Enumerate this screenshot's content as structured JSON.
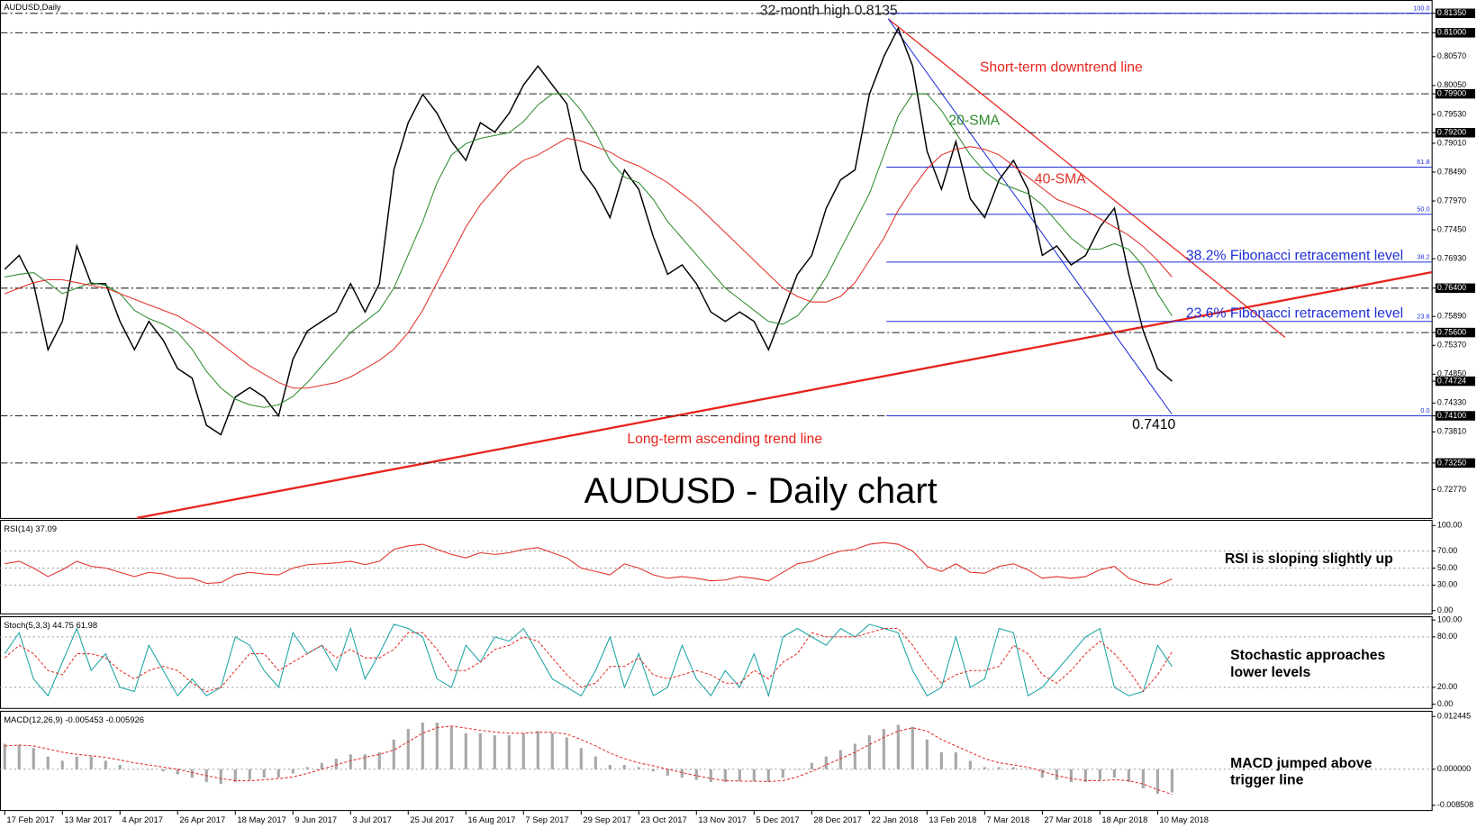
{
  "chart_data": [
    {
      "type": "line",
      "title": "AUDUSD - Daily chart",
      "categories": [
        "17 Feb 2017",
        null,
        null,
        null,
        "13 Mar 2017",
        null,
        null,
        null,
        "4 Apr 2017",
        null,
        null,
        null,
        "26 Apr 2017",
        null,
        null,
        null,
        "18 May 2017",
        null,
        null,
        null,
        "9 Jun 2017",
        null,
        null,
        null,
        "3 Jul 2017",
        null,
        null,
        null,
        "25 Jul 2017",
        null,
        null,
        null,
        "16 Aug 2017",
        null,
        null,
        null,
        "7 Sep 2017",
        null,
        null,
        null,
        "29 Sep 2017",
        null,
        null,
        null,
        "23 Oct 2017",
        null,
        null,
        null,
        "13 Nov 2017",
        null,
        null,
        null,
        "5 Dec 2017",
        null,
        null,
        null,
        "28 Dec 2017",
        null,
        null,
        null,
        "22 Jan 2018",
        null,
        null,
        null,
        "13 Feb 2018",
        null,
        null,
        null,
        "7 Mar 2018",
        null,
        null,
        null,
        "27 Mar 2018",
        null,
        null,
        null,
        "18 Apr 2018",
        null,
        null,
        null,
        "10 May 2018",
        null
      ],
      "series": [
        {
          "name": "AUDUSD,Daily",
          "color": "#000000",
          "values": [
            0.7674,
            0.7699,
            0.7648,
            0.7529,
            0.758,
            0.7716,
            0.7648,
            0.7648,
            0.758,
            0.7529,
            0.758,
            0.7546,
            0.7495,
            0.7478,
            0.7393,
            0.7376,
            0.7444,
            0.7461,
            0.7444,
            0.741,
            0.7512,
            0.7563,
            0.758,
            0.7597,
            0.7648,
            0.7597,
            0.7648,
            0.7853,
            0.7938,
            0.7989,
            0.7955,
            0.7904,
            0.787,
            0.7938,
            0.7921,
            0.7955,
            0.8006,
            0.804,
            0.8006,
            0.7972,
            0.7853,
            0.7818,
            0.7767,
            0.7853,
            0.7818,
            0.7733,
            0.7665,
            0.7682,
            0.7648,
            0.7597,
            0.758,
            0.7597,
            0.758,
            0.7529,
            0.7597,
            0.7665,
            0.7699,
            0.7784,
            0.7835,
            0.7853,
            0.7989,
            0.8057,
            0.8108,
            0.804,
            0.7887,
            0.7818,
            0.7904,
            0.7801,
            0.7767,
            0.7835,
            0.787,
            0.7818,
            0.7699,
            0.7716,
            0.7682,
            0.7699,
            0.775,
            0.7784,
            0.7665,
            0.7563,
            0.7495,
            0.74724
          ]
        },
        {
          "name": "20-SMA",
          "color": "#2e8b2e",
          "values": [
            0.766,
            0.7665,
            0.7668,
            0.765,
            0.763,
            0.764,
            0.765,
            0.7645,
            0.763,
            0.76,
            0.7585,
            0.7575,
            0.756,
            0.753,
            0.749,
            0.746,
            0.744,
            0.743,
            0.7425,
            0.743,
            0.7445,
            0.747,
            0.75,
            0.753,
            0.756,
            0.758,
            0.76,
            0.764,
            0.77,
            0.776,
            0.783,
            0.788,
            0.79,
            0.791,
            0.7915,
            0.792,
            0.794,
            0.797,
            0.799,
            0.799,
            0.796,
            0.792,
            0.787,
            0.784,
            0.783,
            0.78,
            0.776,
            0.773,
            0.77,
            0.767,
            0.764,
            0.762,
            0.76,
            0.758,
            0.7575,
            0.759,
            0.762,
            0.766,
            0.771,
            0.776,
            0.781,
            0.788,
            0.795,
            0.799,
            0.799,
            0.796,
            0.792,
            0.788,
            0.785,
            0.783,
            0.782,
            0.781,
            0.779,
            0.776,
            0.773,
            0.771,
            0.771,
            0.772,
            0.771,
            0.768,
            0.763,
            0.759
          ]
        },
        {
          "name": "40-SMA",
          "color": "#e0302a",
          "values": [
            0.763,
            0.764,
            0.765,
            0.7655,
            0.7655,
            0.765,
            0.7645,
            0.764,
            0.763,
            0.762,
            0.761,
            0.76,
            0.759,
            0.7575,
            0.756,
            0.754,
            0.752,
            0.75,
            0.7485,
            0.747,
            0.746,
            0.746,
            0.7465,
            0.747,
            0.748,
            0.7495,
            0.751,
            0.753,
            0.756,
            0.76,
            0.765,
            0.77,
            0.775,
            0.779,
            0.782,
            0.785,
            0.787,
            0.788,
            0.7895,
            0.791,
            0.7905,
            0.7895,
            0.7885,
            0.787,
            0.786,
            0.7845,
            0.783,
            0.781,
            0.779,
            0.7765,
            0.774,
            0.7715,
            0.769,
            0.7665,
            0.764,
            0.7625,
            0.7615,
            0.7615,
            0.7625,
            0.765,
            0.769,
            0.773,
            0.778,
            0.782,
            0.7855,
            0.788,
            0.789,
            0.7895,
            0.789,
            0.788,
            0.786,
            0.784,
            0.782,
            0.78,
            0.779,
            0.778,
            0.7765,
            0.775,
            0.7735,
            0.7715,
            0.769,
            0.766
          ]
        }
      ],
      "ylim": [
        0.7226,
        0.8159
      ],
      "yticks": [
        {
          "value": 0.8135,
          "label": "0.81350"
        },
        {
          "value": 0.81,
          "label": "0.81000"
        },
        {
          "value": 0.8057,
          "label": "0.80570"
        },
        {
          "value": 0.8005,
          "label": "0.80050"
        },
        {
          "value": 0.799,
          "label": "0.79900"
        },
        {
          "value": 0.7953,
          "label": "0.79530"
        },
        {
          "value": 0.792,
          "label": "0.79200"
        },
        {
          "value": 0.7901,
          "label": "0.79010"
        },
        {
          "value": 0.7849,
          "label": "0.78490"
        },
        {
          "value": 0.7797,
          "label": "0.77970"
        },
        {
          "value": 0.7745,
          "label": "0.77450"
        },
        {
          "value": 0.7693,
          "label": "0.76930"
        },
        {
          "value": 0.764,
          "label": "0.76400"
        },
        {
          "value": 0.7589,
          "label": "0.75890"
        },
        {
          "value": 0.756,
          "label": "0.75600"
        },
        {
          "value": 0.7537,
          "label": "0.75370"
        },
        {
          "value": 0.7485,
          "label": "0.74850"
        },
        {
          "value": 0.74724,
          "label": "0.74724"
        },
        {
          "value": 0.7433,
          "label": "0.74330"
        },
        {
          "value": 0.741,
          "label": "0.74100"
        },
        {
          "value": 0.7381,
          "label": "0.73810"
        },
        {
          "value": 0.7325,
          "label": "0.73250"
        },
        {
          "value": 0.7277,
          "label": "0.72770"
        }
      ],
      "levels": [
        0.8135,
        0.81,
        0.799,
        0.792,
        0.764,
        0.756,
        0.741,
        0.7325
      ],
      "fibonacci": [
        {
          "label": "100.0",
          "value": 0.8135
        },
        {
          "label": "61.8",
          "value": 0.7858
        },
        {
          "label": "50.0",
          "value": 0.7773
        },
        {
          "label": "38.2",
          "value": 0.7687
        },
        {
          "label": "23.6",
          "value": 0.758
        },
        {
          "label": "0.0",
          "value": 0.741
        }
      ],
      "annotations": [
        "32-month high 0.8135",
        "Short-term downtrend line",
        "38.2% Fibonacci retracement level",
        "23.6% Fibonacci retracement level",
        "Long-term ascending trend line",
        "0.7410"
      ]
    },
    {
      "type": "line",
      "label": "RSI(14) 37.09",
      "annotation": [
        "RSI is sloping slightly up"
      ],
      "series": [
        {
          "color": "#e0302a",
          "values": [
            55,
            58,
            50,
            40,
            48,
            58,
            52,
            50,
            45,
            40,
            45,
            43,
            38,
            38,
            32,
            33,
            42,
            45,
            43,
            42,
            50,
            54,
            55,
            56,
            58,
            54,
            58,
            72,
            76,
            78,
            72,
            66,
            62,
            68,
            66,
            68,
            72,
            74,
            68,
            62,
            50,
            46,
            42,
            55,
            50,
            42,
            38,
            40,
            38,
            35,
            36,
            40,
            38,
            35,
            45,
            55,
            58,
            65,
            70,
            72,
            78,
            80,
            78,
            70,
            52,
            46,
            55,
            45,
            44,
            52,
            55,
            48,
            38,
            40,
            38,
            40,
            48,
            52,
            38,
            32,
            30,
            37.09
          ]
        }
      ],
      "ylim": [
        0,
        100
      ],
      "yticks": [
        {
          "value": 100,
          "label": "100.00"
        },
        {
          "value": 70,
          "label": "70.00"
        },
        {
          "value": 50,
          "label": "50.00"
        },
        {
          "value": 30,
          "label": "30.00"
        },
        {
          "value": 0,
          "label": "0.00"
        }
      ]
    },
    {
      "type": "line",
      "label": "Stoch(5,3,3) 44.75 61.98",
      "annotation": [
        "Stochastic approaches",
        "lower levels"
      ],
      "series": [
        {
          "color": "#1aa3a3",
          "values": [
            60,
            85,
            30,
            10,
            50,
            90,
            40,
            60,
            20,
            15,
            70,
            40,
            10,
            30,
            10,
            20,
            80,
            70,
            40,
            20,
            85,
            60,
            70,
            40,
            90,
            30,
            60,
            95,
            90,
            80,
            30,
            20,
            70,
            50,
            80,
            75,
            90,
            60,
            30,
            20,
            10,
            40,
            80,
            20,
            60,
            10,
            20,
            70,
            30,
            10,
            40,
            20,
            60,
            10,
            80,
            90,
            80,
            70,
            90,
            80,
            95,
            90,
            85,
            40,
            10,
            20,
            80,
            20,
            30,
            90,
            85,
            10,
            20,
            40,
            60,
            80,
            90,
            20,
            10,
            15,
            70,
            44.75
          ]
        },
        {
          "color": "#e0302a",
          "dashed": true,
          "values": [
            55,
            70,
            60,
            40,
            35,
            60,
            60,
            55,
            40,
            30,
            40,
            45,
            40,
            25,
            15,
            20,
            40,
            60,
            60,
            40,
            50,
            60,
            70,
            55,
            65,
            55,
            55,
            65,
            85,
            85,
            65,
            40,
            40,
            50,
            65,
            70,
            80,
            75,
            55,
            35,
            20,
            25,
            45,
            45,
            55,
            35,
            30,
            35,
            40,
            35,
            25,
            25,
            40,
            30,
            50,
            60,
            85,
            80,
            80,
            80,
            85,
            90,
            90,
            70,
            45,
            25,
            35,
            40,
            40,
            45,
            70,
            60,
            35,
            25,
            40,
            60,
            75,
            60,
            40,
            15,
            35,
            61.98
          ]
        }
      ],
      "ylim": [
        0,
        100
      ],
      "yticks": [
        {
          "value": 100,
          "label": "100.00"
        },
        {
          "value": 80,
          "label": "80.00"
        },
        {
          "value": 20,
          "label": "20.00"
        },
        {
          "value": 0,
          "label": "0.00"
        }
      ]
    },
    {
      "type": "bar",
      "label": "MACD(12,26,9) -0.005453 -0.005926",
      "annotation": [
        "MACD jumped above",
        "trigger line"
      ],
      "series": [
        {
          "type": "bar",
          "color": "#a8a8a8",
          "values": [
            0.006,
            0.0058,
            0.005,
            0.003,
            0.002,
            0.003,
            0.003,
            0.002,
            0.001,
            0.0,
            0.0,
            -0.0005,
            -0.0012,
            -0.002,
            -0.003,
            -0.0035,
            -0.003,
            -0.0025,
            -0.002,
            -0.002,
            -0.001,
            0.0005,
            0.0015,
            0.0025,
            0.0035,
            0.0035,
            0.004,
            0.007,
            0.0095,
            0.011,
            0.011,
            0.01,
            0.0085,
            0.0085,
            0.008,
            0.008,
            0.0085,
            0.009,
            0.0085,
            0.0075,
            0.005,
            0.003,
            0.001,
            0.001,
            0.0005,
            -0.0005,
            -0.0015,
            -0.002,
            -0.0025,
            -0.003,
            -0.003,
            -0.0028,
            -0.0028,
            -0.003,
            -0.002,
            0.0,
            0.0015,
            0.003,
            0.0045,
            0.006,
            0.008,
            0.0095,
            0.0105,
            0.01,
            0.007,
            0.004,
            0.004,
            0.002,
            0.0005,
            0.0005,
            0.0005,
            0.0,
            -0.002,
            -0.0025,
            -0.003,
            -0.003,
            -0.0025,
            -0.002,
            -0.003,
            -0.0045,
            -0.0058,
            -0.005453
          ]
        },
        {
          "type": "line",
          "color": "#e0302a",
          "dashed": true,
          "values": [
            0.0055,
            0.0057,
            0.0055,
            0.0048,
            0.004,
            0.0035,
            0.0032,
            0.0028,
            0.0022,
            0.0015,
            0.001,
            0.0005,
            0.0,
            -0.0008,
            -0.0015,
            -0.0022,
            -0.0027,
            -0.0027,
            -0.0025,
            -0.0022,
            -0.0018,
            -0.001,
            0.0,
            0.001,
            0.002,
            0.0028,
            0.0035,
            0.0045,
            0.0065,
            0.0085,
            0.0098,
            0.0102,
            0.0097,
            0.0092,
            0.0088,
            0.0085,
            0.0085,
            0.0087,
            0.0087,
            0.0083,
            0.007,
            0.0055,
            0.0038,
            0.0025,
            0.0015,
            0.0008,
            0.0,
            -0.0008,
            -0.0015,
            -0.0022,
            -0.0027,
            -0.0028,
            -0.0028,
            -0.0029,
            -0.0027,
            -0.0018,
            -0.0005,
            0.001,
            0.0025,
            0.004,
            0.0058,
            0.0075,
            0.009,
            0.0098,
            0.009,
            0.007,
            0.0055,
            0.004,
            0.0025,
            0.0015,
            0.001,
            0.0005,
            -0.0005,
            -0.0015,
            -0.0022,
            -0.0027,
            -0.0027,
            -0.0025,
            -0.0027,
            -0.0035,
            -0.0048,
            -0.005926
          ]
        }
      ],
      "ylim": [
        -0.008508,
        0.012445
      ],
      "yticks": [
        0.012445,
        {
          "value": 0,
          "label": "0.000000"
        },
        -0.008508
      ]
    }
  ]
}
